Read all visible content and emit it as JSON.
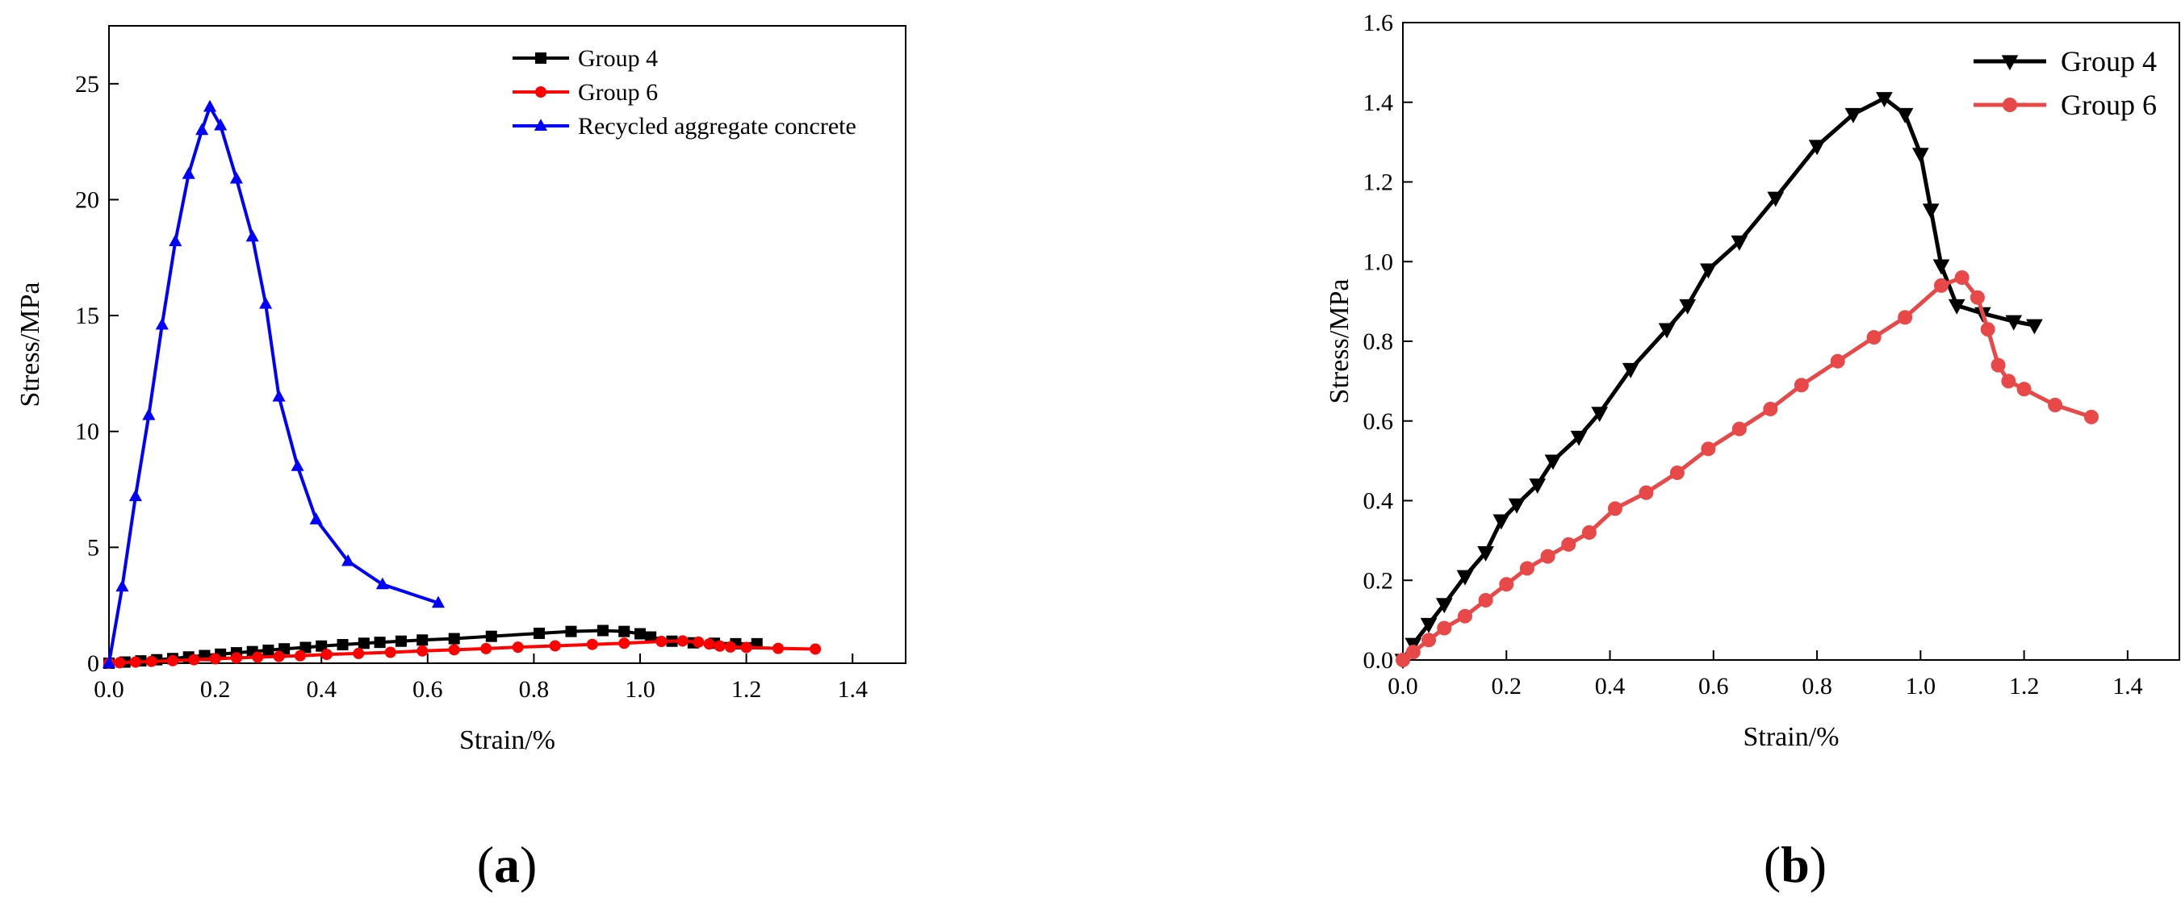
{
  "chart_data": [
    {
      "type": "line",
      "panel_label": "(a)",
      "panel_letter": "a",
      "xlabel": "Strain/%",
      "ylabel": "Stress/MPa",
      "xlim": [
        0,
        1.5
      ],
      "ylim": [
        0,
        27.5
      ],
      "xticks": [
        "0.0",
        "0.2",
        "0.4",
        "0.6",
        "0.8",
        "1.0",
        "1.2",
        "1.4"
      ],
      "xtick_values": [
        0,
        0.2,
        0.4,
        0.6,
        0.8,
        1.0,
        1.2,
        1.4
      ],
      "yticks": [
        "0",
        "5",
        "10",
        "15",
        "20",
        "25"
      ],
      "ytick_values": [
        0,
        5,
        10,
        15,
        20,
        25
      ],
      "grid": false,
      "legend_position": "top-right",
      "series": [
        {
          "name": "Group 4",
          "color": "#000000",
          "marker": "square",
          "x": [
            0.0,
            0.03,
            0.06,
            0.09,
            0.12,
            0.15,
            0.18,
            0.21,
            0.24,
            0.27,
            0.3,
            0.33,
            0.37,
            0.4,
            0.44,
            0.48,
            0.51,
            0.55,
            0.59,
            0.65,
            0.72,
            0.81,
            0.87,
            0.93,
            0.97,
            1.0,
            1.02,
            1.06,
            1.1,
            1.14,
            1.18,
            1.22
          ],
          "y": [
            0.0,
            0.05,
            0.1,
            0.15,
            0.2,
            0.27,
            0.33,
            0.39,
            0.45,
            0.5,
            0.56,
            0.62,
            0.68,
            0.74,
            0.8,
            0.86,
            0.9,
            0.95,
            1.0,
            1.06,
            1.16,
            1.29,
            1.37,
            1.41,
            1.37,
            1.27,
            1.13,
            0.95,
            0.88,
            0.86,
            0.84,
            0.84
          ]
        },
        {
          "name": "Group 6",
          "color": "#ff0000",
          "marker": "circle",
          "x": [
            0.0,
            0.02,
            0.05,
            0.08,
            0.12,
            0.16,
            0.2,
            0.24,
            0.28,
            0.32,
            0.36,
            0.41,
            0.47,
            0.53,
            0.59,
            0.65,
            0.71,
            0.77,
            0.84,
            0.91,
            0.97,
            1.04,
            1.08,
            1.11,
            1.13,
            1.15,
            1.17,
            1.2,
            1.26,
            1.33
          ],
          "y": [
            0.0,
            0.02,
            0.05,
            0.08,
            0.11,
            0.15,
            0.19,
            0.23,
            0.26,
            0.29,
            0.32,
            0.38,
            0.42,
            0.47,
            0.53,
            0.58,
            0.63,
            0.69,
            0.75,
            0.81,
            0.86,
            0.94,
            0.96,
            0.91,
            0.83,
            0.74,
            0.7,
            0.68,
            0.64,
            0.61
          ]
        },
        {
          "name": "Recycled aggregate concrete",
          "color": "#0000ff",
          "marker": "triangle-up",
          "x": [
            0.0,
            0.025,
            0.05,
            0.075,
            0.1,
            0.125,
            0.15,
            0.175,
            0.19,
            0.21,
            0.24,
            0.27,
            0.295,
            0.32,
            0.355,
            0.39,
            0.45,
            0.515,
            0.62
          ],
          "y": [
            0.0,
            3.3,
            7.2,
            10.7,
            14.6,
            18.2,
            21.1,
            23.0,
            24.0,
            23.2,
            20.9,
            18.4,
            15.5,
            11.5,
            8.5,
            6.2,
            4.4,
            3.4,
            2.6
          ]
        }
      ]
    },
    {
      "type": "line",
      "panel_label": "(b)",
      "panel_letter": "b",
      "xlabel": "Strain/%",
      "ylabel": "Stress/MPa",
      "xlim": [
        0,
        1.5
      ],
      "ylim": [
        0,
        1.6
      ],
      "xticks": [
        "0.0",
        "0.2",
        "0.4",
        "0.6",
        "0.8",
        "1.0",
        "1.2",
        "1.4"
      ],
      "xtick_values": [
        0,
        0.2,
        0.4,
        0.6,
        0.8,
        1.0,
        1.2,
        1.4
      ],
      "yticks": [
        "0.0",
        "0.2",
        "0.4",
        "0.6",
        "0.8",
        "1.0",
        "1.2",
        "1.4",
        "1.6"
      ],
      "ytick_values": [
        0,
        0.2,
        0.4,
        0.6,
        0.8,
        1.0,
        1.2,
        1.4,
        1.6
      ],
      "grid": false,
      "legend_position": "top-right",
      "series": [
        {
          "name": "Group 4",
          "color": "#000000",
          "marker": "triangle-down",
          "x": [
            0.0,
            0.02,
            0.05,
            0.08,
            0.12,
            0.16,
            0.19,
            0.22,
            0.26,
            0.29,
            0.34,
            0.38,
            0.44,
            0.51,
            0.55,
            0.59,
            0.65,
            0.72,
            0.8,
            0.87,
            0.93,
            0.97,
            1.0,
            1.02,
            1.04,
            1.07,
            1.12,
            1.18,
            1.22
          ],
          "y": [
            0.0,
            0.04,
            0.09,
            0.14,
            0.21,
            0.27,
            0.35,
            0.39,
            0.44,
            0.5,
            0.56,
            0.62,
            0.73,
            0.83,
            0.89,
            0.98,
            1.05,
            1.16,
            1.29,
            1.37,
            1.41,
            1.37,
            1.27,
            1.13,
            0.99,
            0.89,
            0.87,
            0.85,
            0.84
          ]
        },
        {
          "name": "Group 6",
          "color": "#e84848",
          "marker": "circle",
          "x": [
            0.0,
            0.02,
            0.05,
            0.08,
            0.12,
            0.16,
            0.2,
            0.24,
            0.28,
            0.32,
            0.36,
            0.41,
            0.47,
            0.53,
            0.59,
            0.65,
            0.71,
            0.77,
            0.84,
            0.91,
            0.97,
            1.04,
            1.08,
            1.11,
            1.13,
            1.15,
            1.17,
            1.2,
            1.26,
            1.33
          ],
          "y": [
            0.0,
            0.02,
            0.05,
            0.08,
            0.11,
            0.15,
            0.19,
            0.23,
            0.26,
            0.29,
            0.32,
            0.38,
            0.42,
            0.47,
            0.53,
            0.58,
            0.63,
            0.69,
            0.75,
            0.81,
            0.86,
            0.94,
            0.96,
            0.91,
            0.83,
            0.74,
            0.7,
            0.68,
            0.64,
            0.61
          ]
        }
      ]
    }
  ]
}
